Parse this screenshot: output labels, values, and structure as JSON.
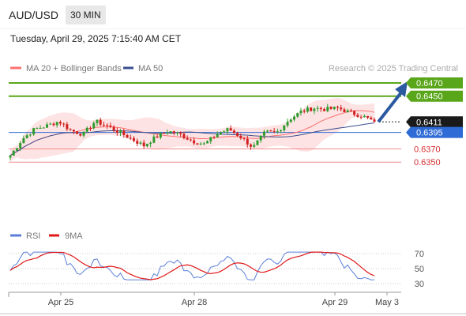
{
  "header": {
    "symbol": "AUD/USD",
    "timeframe": "30 MIN",
    "datetime": "Tuesday, April 29, 2025 7:15:40 AM CET"
  },
  "legend": {
    "ma20_label": "MA 20 + Bollinger Bands",
    "ma50_label": "MA 50",
    "credit": "Research © 2025 Trading Central",
    "rsi_label": "RSI",
    "rsi_ma_label": "9MA"
  },
  "colors": {
    "candle_up": "#2e9b2e",
    "candle_down": "#d11f1f",
    "ma20": "#ff7070",
    "bollinger_fill": "#fde3e3",
    "ma50": "#3a4f8f",
    "resistance": "#5aa61a",
    "pivot": "#2e6bd6",
    "support": "#f08a8a",
    "arrow": "#2c5aa0",
    "rsi": "#5b7fd9",
    "rsi_ma": "#e01818"
  },
  "chart_data": {
    "type": "candlestick",
    "symbol": "AUD/USD",
    "timeframe": "30 MIN",
    "price_levels": [
      {
        "value": 0.647,
        "label": "0.6470",
        "kind": "target-resistance"
      },
      {
        "value": 0.645,
        "label": "0.6450",
        "kind": "resistance"
      },
      {
        "value": 0.6411,
        "label": "0.6411",
        "kind": "current-price"
      },
      {
        "value": 0.6395,
        "label": "0.6395",
        "kind": "pivot"
      },
      {
        "value": 0.637,
        "label": "0.6370",
        "kind": "support"
      },
      {
        "value": 0.635,
        "label": "0.6350",
        "kind": "support"
      }
    ],
    "projection": {
      "from": 0.6411,
      "to": 0.647,
      "direction": "up"
    },
    "x_ticks": [
      "Apr 25",
      "Apr 28",
      "Apr 29",
      "May 3"
    ],
    "price_anchors": [
      0.636,
      0.6385,
      0.64,
      0.6405,
      0.6412,
      0.6398,
      0.6392,
      0.6412,
      0.6405,
      0.6395,
      0.6385,
      0.6375,
      0.6388,
      0.6397,
      0.6392,
      0.6382,
      0.6377,
      0.6392,
      0.64,
      0.6388,
      0.6372,
      0.6395,
      0.6396,
      0.6415,
      0.6427,
      0.6432,
      0.643,
      0.6432,
      0.6425,
      0.642,
      0.6411
    ],
    "rsi_levels": [
      70,
      50,
      30
    ]
  }
}
